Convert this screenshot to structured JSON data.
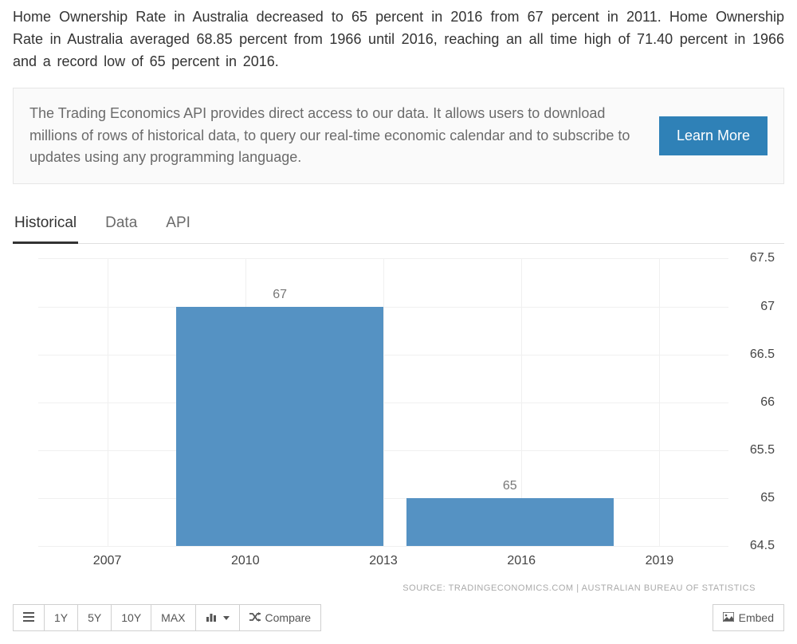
{
  "intro": "Home Ownership Rate in Australia decreased to 65 percent in 2016 from 67 percent in 2011. Home Ownership Rate in Australia averaged 68.85 percent from 1966 until 2016, reaching an all time high of 71.40 percent in 1966 and a record low of 65 percent in 2016.",
  "promo": {
    "text": "The Trading Economics API provides direct access to our data. It allows users to download millions of rows of historical data, to query our real-time economic calendar and to subscribe to updates using any programming language.",
    "button": "Learn More",
    "button_bg": "#2f81b7"
  },
  "tabs": [
    {
      "label": "Historical",
      "active": true
    },
    {
      "label": "Data",
      "active": false
    },
    {
      "label": "API",
      "active": false
    }
  ],
  "chart": {
    "type": "bar",
    "y_min": 64.5,
    "y_max": 67.5,
    "y_step": 0.5,
    "y_ticks": [
      64.5,
      65,
      65.5,
      66,
      66.5,
      67,
      67.5
    ],
    "x_ticks": [
      2007,
      2010,
      2013,
      2016,
      2019
    ],
    "x_min": 2005.5,
    "x_max": 2020.5,
    "bars": [
      {
        "start": 2008.5,
        "end": 2013,
        "value": 67,
        "label": "67"
      },
      {
        "start": 2013.5,
        "end": 2018,
        "value": 65,
        "label": "65"
      }
    ],
    "bar_color": "#5592c3",
    "grid_color": "#f0f0f0",
    "axis_color": "#cfcfcf",
    "label_fontsize": 16,
    "label_color": "#777777"
  },
  "source": "SOURCE: TRADINGECONOMICS.COM | AUSTRALIAN BUREAU OF STATISTICS",
  "toolbar": {
    "ranges": [
      "1Y",
      "5Y",
      "10Y",
      "MAX"
    ],
    "compare": "Compare",
    "embed": "Embed"
  }
}
